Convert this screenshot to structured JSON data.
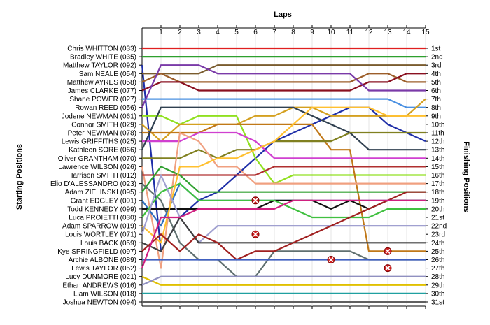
{
  "chart_data": {
    "type": "line",
    "title": "",
    "xlabel": "Laps",
    "ylabel_left": "Starting Positions",
    "ylabel_right": "Finishing Positions",
    "laps": [
      1,
      2,
      3,
      4,
      5,
      6,
      7,
      8,
      9,
      10,
      11,
      12,
      13,
      14,
      15
    ],
    "drivers": [
      "Chris WHITTON (033)",
      "Bradley WHITE (035)",
      "Matthew TAYLOR (092)",
      "Sam NEALE (054)",
      "Matthew AYRES (058)",
      "James CLARKE (077)",
      "Shane POWER (027)",
      "Rowan REED (056)",
      "Jodene NEWMAN (061)",
      "Connor SMITH (029)",
      "Peter NEWMAN (078)",
      "Lewis GRIFFITHS (025)",
      "Kathleen SORE (066)",
      "Oliver GRANTHAM (070)",
      "Lawrence WILSON (026)",
      "Harrison SMITH (012)",
      "Elio D'ALESSANDRO (023)",
      "Adam ZIELINSKI (095)",
      "Grant EDGLEY (091)",
      "Todd KENNEDY (099)",
      "Luca PROIETTI (030)",
      "Adam SPARROW (019)",
      "Louis WORTLEY (071)",
      "Louis BACK (059)",
      "Kye SPRINGFIELD (097)",
      "Archie ALBONE (089)",
      "Lewis TAYLOR (052)",
      "Lucy DUNMORE (021)",
      "Ethan ANDREWS (016)",
      "Liam WILSON (018)",
      "Joshua NEWTON (094)"
    ],
    "finishing_labels": [
      "1st",
      "2nd",
      "3rd",
      "4th",
      "5th",
      "6th",
      "7th",
      "8th",
      "9th",
      "10th",
      "11th",
      "12th",
      "13th",
      "14th",
      "15th",
      "16th",
      "17th",
      "18th",
      "19th",
      "20th",
      "21st",
      "22nd",
      "23rd",
      "24th",
      "25th",
      "26th",
      "27th",
      "28th",
      "29th",
      "30th",
      "31st"
    ],
    "series": [
      {
        "color": "#e02020",
        "positions": [
          1,
          1,
          1,
          1,
          1,
          1,
          1,
          1,
          1,
          1,
          1,
          1,
          1,
          1,
          1,
          1
        ]
      },
      {
        "color": "#2ea02e",
        "positions": [
          2,
          2,
          2,
          2,
          2,
          2,
          2,
          2,
          2,
          2,
          2,
          2,
          2,
          2,
          2,
          2
        ]
      },
      {
        "color": "#1f2fa8",
        "positions": [
          3,
          25,
          21,
          19,
          18,
          16,
          14,
          12,
          11,
          10,
          9,
          8,
          8,
          10,
          11,
          12
        ]
      },
      {
        "color": "#7a5c2e",
        "positions": [
          4,
          4,
          4,
          4,
          3,
          3,
          3,
          3,
          3,
          3,
          3,
          3,
          3,
          3,
          3,
          3
        ]
      },
      {
        "color": "#9c5e2a",
        "positions": [
          5,
          4,
          5,
          5,
          5,
          5,
          5,
          5,
          5,
          5,
          5,
          5,
          4,
          4,
          5,
          5
        ]
      },
      {
        "color": "#8a1020",
        "positions": [
          6,
          5,
          5,
          6,
          6,
          6,
          6,
          6,
          6,
          6,
          6,
          6,
          5,
          5,
          4,
          4
        ]
      },
      {
        "color": "#4a90e2",
        "positions": [
          7,
          7,
          7,
          7,
          7,
          7,
          7,
          7,
          7,
          7,
          7,
          7,
          7,
          7,
          8,
          8
        ]
      },
      {
        "color": "#7a3aa8",
        "positions": [
          8,
          3,
          3,
          3,
          4,
          4,
          4,
          4,
          4,
          4,
          4,
          4,
          6,
          6,
          6,
          6
        ]
      },
      {
        "color": "#90e020",
        "positions": [
          9,
          9,
          10,
          9,
          9,
          9,
          14,
          17,
          16,
          16,
          16,
          16,
          16,
          16,
          16,
          16
        ]
      },
      {
        "color": "#d4a020",
        "positions": [
          10,
          12,
          10,
          10,
          10,
          10,
          9,
          9,
          8,
          8,
          9,
          9,
          9,
          9,
          9,
          7
        ]
      },
      {
        "color": "#c07818",
        "positions": [
          11,
          11,
          11,
          11,
          10,
          10,
          10,
          10,
          10,
          10,
          13,
          13,
          25,
          25,
          25,
          25
        ]
      },
      {
        "color": "#d040d0",
        "positions": [
          12,
          12,
          12,
          11,
          11,
          11,
          12,
          14,
          14,
          14,
          14,
          14,
          14,
          14,
          14,
          14
        ]
      },
      {
        "color": "#304050",
        "positions": [
          13,
          8,
          8,
          8,
          8,
          8,
          8,
          8,
          8,
          9,
          10,
          11,
          13,
          13,
          13,
          13
        ]
      },
      {
        "color": "#808020",
        "positions": [
          14,
          14,
          14,
          13,
          14,
          13,
          13,
          12,
          12,
          12,
          12,
          11,
          11,
          11,
          11,
          11
        ]
      },
      {
        "color": "#f0a080",
        "positions": [
          15,
          27,
          11,
          12,
          15,
          15,
          17,
          17,
          17,
          17,
          17,
          17,
          17,
          17,
          17,
          17
        ]
      },
      {
        "color": "#b03030",
        "positions": [
          16,
          16,
          16,
          16,
          16,
          16,
          16,
          15,
          15,
          15,
          15,
          15,
          15,
          15,
          15,
          15
        ]
      },
      {
        "color": "#607070",
        "positions": [
          17,
          19,
          24,
          26,
          26,
          28,
          28,
          25,
          25,
          25,
          25,
          25,
          26,
          26,
          26,
          26
        ]
      },
      {
        "color": "#30a030",
        "positions": [
          18,
          15,
          16,
          18,
          18,
          18,
          18,
          18,
          18,
          18,
          18,
          18,
          18,
          18,
          18,
          18
        ]
      },
      {
        "color": "#3070c0",
        "positions": [
          19,
          22,
          17,
          19,
          19,
          19,
          19,
          19,
          19,
          19,
          19,
          19,
          19,
          19,
          19,
          19
        ]
      },
      {
        "color": "#101010",
        "positions": [
          20,
          20,
          20,
          20,
          20,
          20,
          20,
          19,
          19,
          19,
          20,
          19,
          20,
          19,
          19,
          19
        ]
      },
      {
        "color": "#40c040",
        "positions": [
          21,
          18,
          17,
          19,
          19,
          19,
          19,
          19,
          20,
          21,
          21,
          21,
          21,
          20,
          20,
          20
        ]
      },
      {
        "color": "#ffc030",
        "positions": [
          22,
          24,
          15,
          15,
          14,
          14,
          13,
          12,
          10,
          8,
          8,
          8,
          8,
          9,
          9,
          9
        ]
      },
      {
        "color": "#a0a0d0",
        "positions": [
          23,
          16,
          21,
          24,
          22,
          22,
          22,
          22,
          22,
          22,
          22,
          22,
          22,
          22,
          22,
          22
        ]
      },
      {
        "color": "#404040",
        "positions": [
          24,
          25,
          21,
          24,
          24,
          24,
          24,
          24,
          24,
          24,
          24,
          24,
          24,
          24,
          24,
          24
        ]
      },
      {
        "color": "#a02020",
        "positions": [
          25,
          23,
          25,
          23,
          24,
          26,
          25,
          25,
          24,
          23,
          22,
          21,
          20,
          19,
          18,
          18
        ]
      },
      {
        "color": "#4060c0",
        "positions": [
          26,
          26,
          26,
          26,
          26,
          26,
          26,
          26,
          26,
          26,
          26,
          26,
          26,
          26,
          26,
          26
        ]
      },
      {
        "color": "#d02080",
        "positions": [
          27,
          21,
          21,
          20,
          20,
          20,
          20,
          20,
          19,
          19,
          19,
          19,
          19,
          19,
          19,
          19
        ]
      },
      {
        "color": "#e0c000",
        "positions": [
          28,
          29,
          29,
          29,
          29,
          29,
          29,
          29,
          29,
          29,
          29,
          29,
          29,
          29,
          29,
          29
        ]
      },
      {
        "color": "#9090c0",
        "positions": [
          29,
          28,
          28,
          28,
          28,
          28,
          28,
          28,
          28,
          28,
          28,
          28,
          28,
          28,
          28,
          28
        ]
      },
      {
        "color": "#20a0a0",
        "positions": [
          30,
          30,
          30,
          30,
          30,
          30,
          30,
          30,
          30,
          30,
          30,
          30,
          30,
          30,
          30,
          30
        ]
      },
      {
        "color": "#606060",
        "positions": [
          31,
          31,
          31,
          31,
          31,
          31,
          31,
          31,
          31,
          31,
          31,
          31,
          31,
          31,
          31,
          31
        ]
      }
    ],
    "retirements": [
      {
        "lap": 6,
        "position": 19
      },
      {
        "lap": 6,
        "position": 23
      },
      {
        "lap": 10,
        "position": 26
      },
      {
        "lap": 13,
        "position": 25
      },
      {
        "lap": 13,
        "position": 27
      }
    ],
    "grid": true
  }
}
